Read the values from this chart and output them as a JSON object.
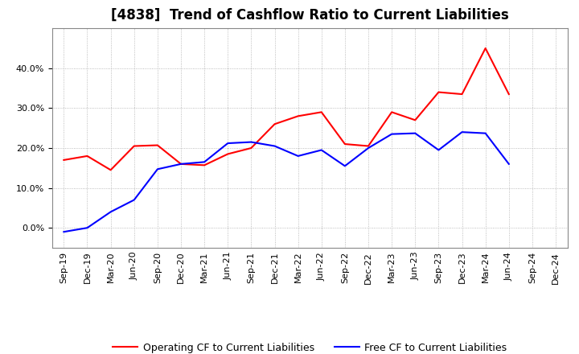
{
  "title": "[4838]  Trend of Cashflow Ratio to Current Liabilities",
  "x_labels": [
    "Sep-19",
    "Dec-19",
    "Mar-20",
    "Jun-20",
    "Sep-20",
    "Dec-20",
    "Mar-21",
    "Jun-21",
    "Sep-21",
    "Dec-21",
    "Mar-22",
    "Jun-22",
    "Sep-22",
    "Dec-22",
    "Mar-23",
    "Jun-23",
    "Sep-23",
    "Dec-23",
    "Mar-24",
    "Jun-24",
    "Sep-24",
    "Dec-24"
  ],
  "operating_cf": [
    0.17,
    0.18,
    0.145,
    0.205,
    0.207,
    0.16,
    0.157,
    0.185,
    0.2,
    0.26,
    0.28,
    0.29,
    0.21,
    0.205,
    0.29,
    0.27,
    0.34,
    0.335,
    0.45,
    0.335,
    null,
    null
  ],
  "free_cf": [
    -0.01,
    0.0,
    0.04,
    0.07,
    0.147,
    0.16,
    0.165,
    0.212,
    0.215,
    0.205,
    0.18,
    0.195,
    0.155,
    0.2,
    0.235,
    0.237,
    0.195,
    0.24,
    0.237,
    0.16,
    null,
    null
  ],
  "ylim": [
    -0.05,
    0.5
  ],
  "yticks": [
    0.0,
    0.1,
    0.2,
    0.3,
    0.4
  ],
  "operating_color": "#FF0000",
  "free_color": "#0000FF",
  "grid_color": "#AAAAAA",
  "background_color": "#FFFFFF",
  "title_fontsize": 12,
  "legend_fontsize": 9,
  "tick_fontsize": 8
}
